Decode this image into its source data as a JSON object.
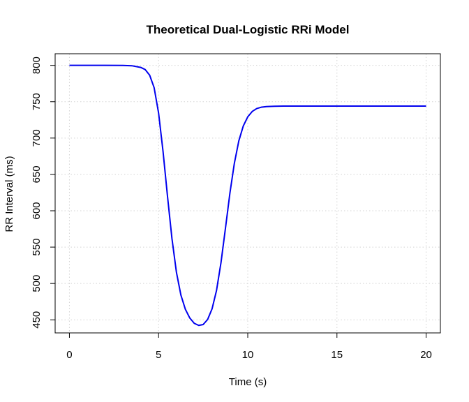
{
  "chart_data": {
    "type": "line",
    "title": "Theoretical Dual-Logistic RRi Model",
    "xlabel": "Time (s)",
    "ylabel": "RR Interval (ms)",
    "xlim": [
      -0.8,
      20.8
    ],
    "ylim": [
      432,
      816
    ],
    "x_ticks": [
      0,
      5,
      10,
      15,
      20
    ],
    "y_ticks": [
      450,
      500,
      550,
      600,
      650,
      700,
      750,
      800
    ],
    "x_tick_labels": [
      "0",
      "5",
      "10",
      "15",
      "20"
    ],
    "y_tick_labels": [
      "450",
      "500",
      "550",
      "600",
      "650",
      "700",
      "750",
      "800"
    ],
    "grid": true,
    "line_color": "#0000ee",
    "series": [
      {
        "x": [
          0,
          1,
          2,
          3,
          3.5,
          4,
          4.25,
          4.5,
          4.75,
          5,
          5.25,
          5.5,
          5.75,
          6,
          6.25,
          6.5,
          6.75,
          7,
          7.25,
          7.5,
          7.75,
          8,
          8.25,
          8.5,
          8.75,
          9,
          9.25,
          9.5,
          9.75,
          10,
          10.25,
          10.5,
          10.75,
          11,
          11.5,
          12,
          13,
          14,
          15,
          16,
          17,
          18,
          19,
          20
        ],
        "y": [
          800,
          800,
          800,
          799.9,
          799.5,
          797.2,
          794.2,
          786.5,
          769.4,
          734.5,
          681.6,
          619.9,
          561.7,
          515.5,
          484.1,
          464.6,
          452.5,
          445.2,
          442.3,
          443.5,
          450.5,
          465.2,
          490.6,
          528.9,
          576.1,
          624.4,
          665.5,
          696.3,
          716.7,
          729.2,
          736.6,
          740.6,
          742.4,
          743.2,
          743.8,
          744,
          744,
          744,
          744,
          744,
          744,
          744,
          744,
          744
        ]
      }
    ]
  }
}
